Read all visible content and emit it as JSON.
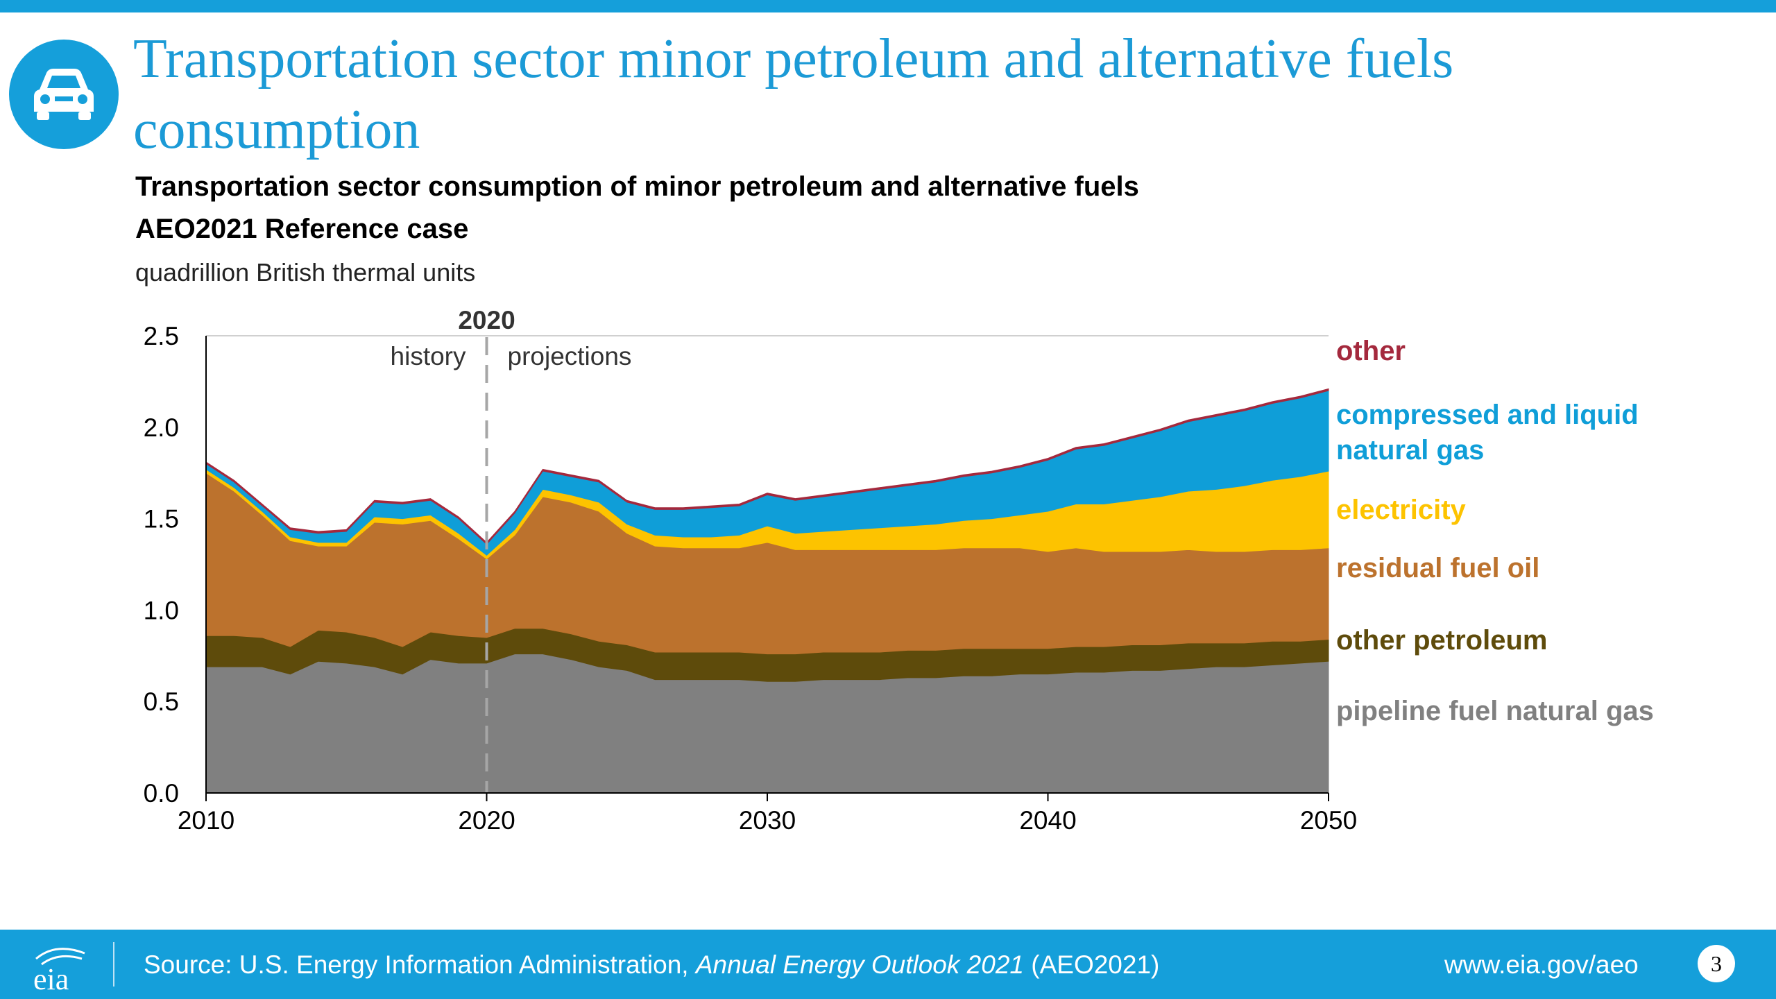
{
  "header": {
    "title": "Transportation sector minor petroleum and alternative fuels consumption",
    "icon": "car-icon",
    "accent_color": "#159fda"
  },
  "chart_title": "Transportation sector consumption of minor petroleum and alternative fuels",
  "chart_subtitle": "AEO2021 Reference case",
  "units": "quadrillion British thermal units",
  "chart_data": {
    "type": "area",
    "stacked": true,
    "x": [
      2010,
      2011,
      2012,
      2013,
      2014,
      2015,
      2016,
      2017,
      2018,
      2019,
      2020,
      2021,
      2022,
      2023,
      2024,
      2025,
      2026,
      2027,
      2028,
      2029,
      2030,
      2031,
      2032,
      2033,
      2034,
      2035,
      2036,
      2037,
      2038,
      2039,
      2040,
      2041,
      2042,
      2043,
      2044,
      2045,
      2046,
      2047,
      2048,
      2049,
      2050
    ],
    "series": [
      {
        "name": "pipeline fuel natural gas",
        "color": "#808080",
        "values": [
          0.69,
          0.69,
          0.69,
          0.65,
          0.72,
          0.71,
          0.69,
          0.65,
          0.73,
          0.71,
          0.71,
          0.76,
          0.76,
          0.73,
          0.69,
          0.67,
          0.62,
          0.62,
          0.62,
          0.62,
          0.61,
          0.61,
          0.62,
          0.62,
          0.62,
          0.63,
          0.63,
          0.64,
          0.64,
          0.65,
          0.65,
          0.66,
          0.66,
          0.67,
          0.67,
          0.68,
          0.69,
          0.69,
          0.7,
          0.71,
          0.72
        ]
      },
      {
        "name": "other petroleum",
        "color": "#5e4b0b",
        "values": [
          0.17,
          0.17,
          0.16,
          0.15,
          0.17,
          0.17,
          0.16,
          0.15,
          0.15,
          0.15,
          0.14,
          0.14,
          0.14,
          0.14,
          0.14,
          0.14,
          0.15,
          0.15,
          0.15,
          0.15,
          0.15,
          0.15,
          0.15,
          0.15,
          0.15,
          0.15,
          0.15,
          0.15,
          0.15,
          0.14,
          0.14,
          0.14,
          0.14,
          0.14,
          0.14,
          0.14,
          0.13,
          0.13,
          0.13,
          0.12,
          0.12
        ]
      },
      {
        "name": "residual fuel oil",
        "color": "#bc722d",
        "values": [
          0.89,
          0.79,
          0.67,
          0.58,
          0.46,
          0.47,
          0.63,
          0.67,
          0.61,
          0.53,
          0.43,
          0.51,
          0.72,
          0.72,
          0.71,
          0.61,
          0.58,
          0.57,
          0.57,
          0.57,
          0.61,
          0.57,
          0.56,
          0.56,
          0.56,
          0.55,
          0.55,
          0.55,
          0.55,
          0.55,
          0.53,
          0.54,
          0.52,
          0.51,
          0.51,
          0.51,
          0.5,
          0.5,
          0.5,
          0.5,
          0.5
        ]
      },
      {
        "name": "electricity",
        "color": "#fdc300",
        "values": [
          0.02,
          0.02,
          0.02,
          0.02,
          0.02,
          0.02,
          0.03,
          0.03,
          0.03,
          0.03,
          0.02,
          0.03,
          0.04,
          0.04,
          0.05,
          0.05,
          0.06,
          0.06,
          0.06,
          0.07,
          0.09,
          0.09,
          0.1,
          0.11,
          0.12,
          0.13,
          0.14,
          0.15,
          0.16,
          0.18,
          0.22,
          0.24,
          0.26,
          0.28,
          0.3,
          0.32,
          0.34,
          0.36,
          0.38,
          0.4,
          0.42
        ]
      },
      {
        "name": "compressed and liquid natural gas",
        "color": "#0f9ed8",
        "values": [
          0.03,
          0.03,
          0.03,
          0.04,
          0.05,
          0.06,
          0.08,
          0.08,
          0.08,
          0.08,
          0.06,
          0.09,
          0.1,
          0.1,
          0.11,
          0.12,
          0.14,
          0.15,
          0.16,
          0.16,
          0.17,
          0.18,
          0.19,
          0.2,
          0.21,
          0.22,
          0.23,
          0.24,
          0.25,
          0.26,
          0.28,
          0.3,
          0.32,
          0.34,
          0.36,
          0.38,
          0.4,
          0.41,
          0.42,
          0.43,
          0.44
        ]
      },
      {
        "name": "other",
        "color": "#a4293d",
        "values": [
          0.01,
          0.01,
          0.01,
          0.01,
          0.01,
          0.01,
          0.01,
          0.01,
          0.01,
          0.01,
          0.01,
          0.01,
          0.01,
          0.01,
          0.01,
          0.01,
          0.01,
          0.01,
          0.01,
          0.01,
          0.01,
          0.01,
          0.01,
          0.01,
          0.01,
          0.01,
          0.01,
          0.01,
          0.01,
          0.01,
          0.01,
          0.01,
          0.01,
          0.01,
          0.01,
          0.01,
          0.01,
          0.01,
          0.01,
          0.01,
          0.01
        ]
      }
    ],
    "ylim": [
      0,
      2.5
    ],
    "yticks": [
      "0.0",
      "0.5",
      "1.0",
      "1.5",
      "2.0",
      "2.5"
    ],
    "xticks": [
      "2010",
      "2020",
      "2030",
      "2040",
      "2050"
    ],
    "grid": "horizontal at top only",
    "legend_placement": "right",
    "annotations": {
      "divider_year": "2020",
      "left_label": "history",
      "right_label": "projections"
    }
  },
  "footer": {
    "source_prefix": "Source: U.S. Energy Information Administration, ",
    "source_italic": "Annual Energy Outlook 2021",
    "source_suffix": " (AEO2021)",
    "url": "www.eia.gov/aeo",
    "page_number": "3",
    "logo_text": "eia"
  }
}
